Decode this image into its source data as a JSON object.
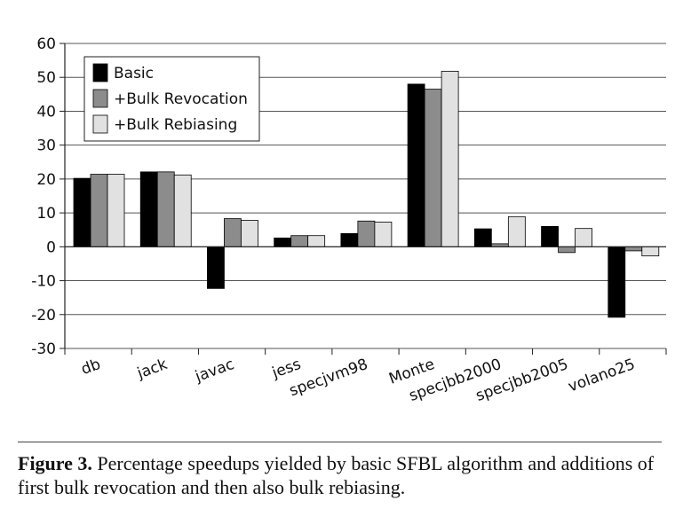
{
  "chart_data": {
    "type": "bar",
    "categories": [
      "db",
      "jack",
      "javac",
      "jess",
      "specjvm98",
      "Monte",
      "specjbb2000",
      "specjbb2005",
      "volano25"
    ],
    "series": [
      {
        "name": "Basic",
        "color": "#000000",
        "values": [
          20.2,
          22.1,
          -12.3,
          2.6,
          3.9,
          48.0,
          5.3,
          6.0,
          -20.8
        ]
      },
      {
        "name": "+Bulk Revocation",
        "color": "#8c8c8c",
        "values": [
          21.4,
          22.1,
          8.3,
          3.3,
          7.6,
          46.5,
          0.9,
          -1.7,
          -1.2
        ]
      },
      {
        "name": "+Bulk Rebiasing",
        "color": "#e1e1e1",
        "values": [
          21.4,
          21.2,
          7.8,
          3.3,
          7.3,
          51.8,
          8.9,
          5.4,
          -2.7
        ]
      }
    ],
    "yticks": [
      60,
      50,
      40,
      30,
      20,
      10,
      0,
      -10,
      -20,
      -30
    ],
    "ylim": [
      -30,
      60
    ],
    "grid": true,
    "legend_position": "top-left"
  },
  "caption": {
    "label": "Figure 3.",
    "text": "Percentage speedups yielded by basic SFBL algorithm and additions of first bulk revocation and then also bulk rebiasing."
  }
}
